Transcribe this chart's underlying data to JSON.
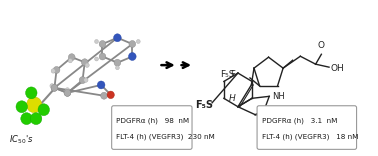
{
  "background_color": "#ffffff",
  "text_color": "#1a1a1a",
  "box_edge_color": "#999999",
  "ic50_label": "IC$_{50}$'s",
  "box1_line1_a": "PDGFR",
  "box1_line1_b": "α",
  "box1_line1_c": " (h)   98  nM",
  "box1_line2": "FLT-4 (h) (VEGFR3)  230 nM",
  "box2_line1_a": "PDGFR",
  "box2_line1_b": "α",
  "box2_line1_c": " (h)   3.1  nM",
  "box2_line2": "FLT-4 (h) (VEGFR3)   18 nM",
  "font_size": 5.2
}
